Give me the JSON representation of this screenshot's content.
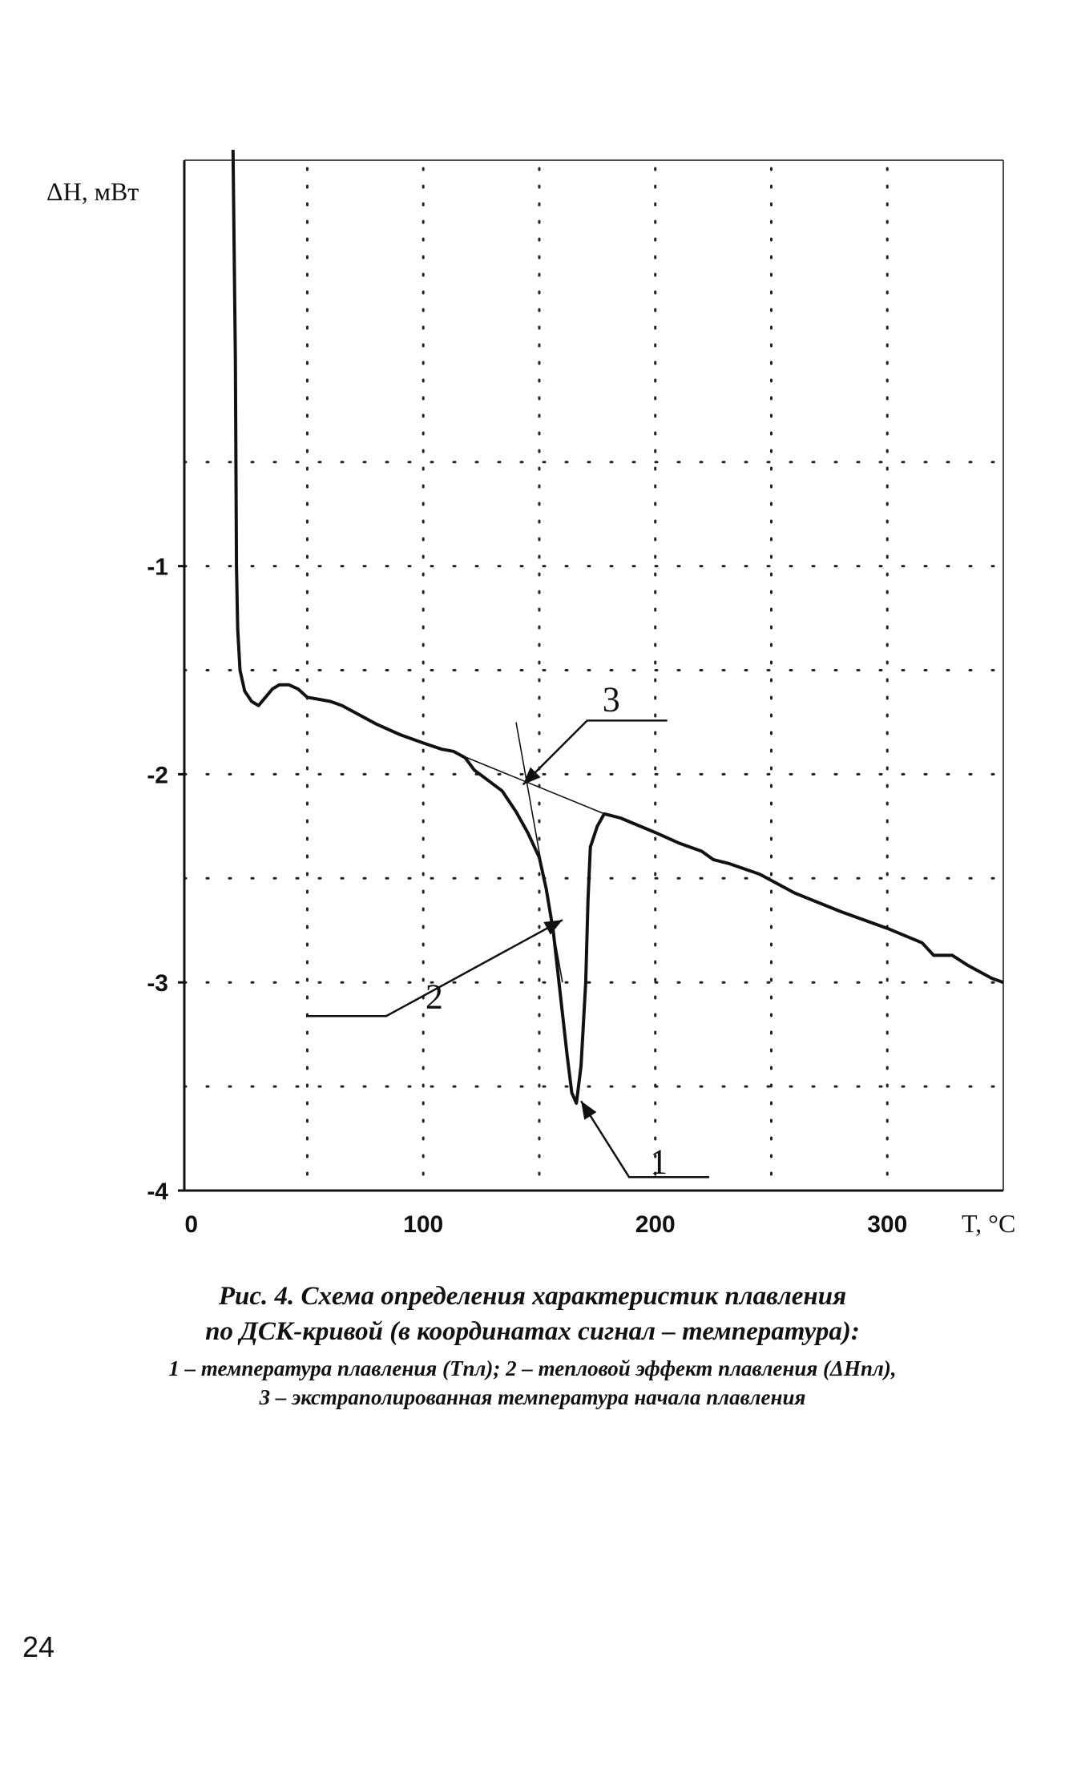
{
  "chart_data": {
    "type": "line",
    "ylabel": "ΔH, мВт",
    "xlabel": "T, °C",
    "xlim": [
      -3,
      350
    ],
    "ylim": [
      -4,
      0.95
    ],
    "xticks": [
      0,
      100,
      200,
      300
    ],
    "yticks": [
      -1,
      -2,
      -3,
      -4
    ],
    "grid": "dotted",
    "series": [
      {
        "points": [
          [
            18,
            1.0
          ],
          [
            19,
            0.0
          ],
          [
            19.5,
            -1.0
          ],
          [
            20,
            -1.3
          ],
          [
            21,
            -1.5
          ],
          [
            23,
            -1.6
          ],
          [
            26,
            -1.65
          ],
          [
            29,
            -1.67
          ],
          [
            32,
            -1.63
          ],
          [
            35,
            -1.59
          ],
          [
            38,
            -1.57
          ],
          [
            42,
            -1.57
          ],
          [
            46,
            -1.59
          ],
          [
            50,
            -1.63
          ],
          [
            55,
            -1.64
          ],
          [
            60,
            -1.65
          ],
          [
            65,
            -1.67
          ],
          [
            70,
            -1.7
          ],
          [
            80,
            -1.76
          ],
          [
            90,
            -1.81
          ],
          [
            100,
            -1.85
          ],
          [
            108,
            -1.88
          ],
          [
            113,
            -1.89
          ],
          [
            118,
            -1.92
          ],
          [
            122,
            -1.98
          ],
          [
            128,
            -2.03
          ],
          [
            134,
            -2.08
          ],
          [
            140,
            -2.18
          ],
          [
            145,
            -2.28
          ],
          [
            150,
            -2.4
          ],
          [
            153,
            -2.55
          ],
          [
            156,
            -2.75
          ],
          [
            159,
            -3.05
          ],
          [
            162,
            -3.35
          ],
          [
            164,
            -3.53
          ],
          [
            166,
            -3.58
          ],
          [
            168,
            -3.4
          ],
          [
            170,
            -3.0
          ],
          [
            171,
            -2.6
          ],
          [
            172,
            -2.35
          ],
          [
            175,
            -2.25
          ],
          [
            178,
            -2.19
          ],
          [
            185,
            -2.21
          ],
          [
            200,
            -2.28
          ],
          [
            210,
            -2.33
          ],
          [
            220,
            -2.37
          ],
          [
            225,
            -2.41
          ],
          [
            232,
            -2.43
          ],
          [
            245,
            -2.48
          ],
          [
            260,
            -2.57
          ],
          [
            280,
            -2.66
          ],
          [
            300,
            -2.74
          ],
          [
            315,
            -2.81
          ],
          [
            320,
            -2.87
          ],
          [
            328,
            -2.87
          ],
          [
            335,
            -2.92
          ],
          [
            345,
            -2.98
          ],
          [
            350,
            -3.0
          ]
        ]
      }
    ],
    "baseline": [
      [
        110,
        -1.88
      ],
      [
        178,
        -2.19
      ]
    ],
    "tangent": [
      [
        140,
        -1.75
      ],
      [
        160,
        -3.0
      ]
    ],
    "markers": [
      {
        "label": "1",
        "at": [
          168,
          -3.57
        ]
      },
      {
        "label": "2",
        "at": [
          160,
          -2.7
        ]
      },
      {
        "label": "3",
        "at": [
          143,
          -2.05
        ]
      }
    ]
  },
  "caption": {
    "title_line1": "Рис. 4. Схема определения характеристик плавления",
    "title_line2": "по ДСК-кривой (в координатах сигнал – температура):",
    "legend_line1": "1 – температура плавления (Tпл); 2 – тепловой эффект плавления (ΔHпл),",
    "legend_line2": "3 – экстраполированная температура начала плавления"
  },
  "page_number": "24"
}
